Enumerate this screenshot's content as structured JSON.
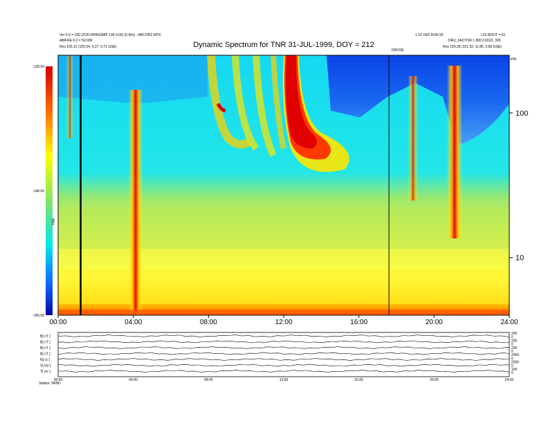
{
  "header": {
    "title": "Dynamic Spectrum for TNR 31-JUL-1999, DOY = 212",
    "left_line1": "Ver 5.0 = 100 (ZOO MPASSMP 100 0.00) (0.00v) - ARCOR2 EPIC",
    "left_line2": "AB/FRE 0.2 = 50.000",
    "left_line3": "Res     155.12 (155.54, 0.27, 0.71 GSE)",
    "right_line1": "1.10 VED DUR 00",
    "right_line2": "DRU_FACTOR 1 800 0.0013, 300",
    "right_line3": "Res     150.28 (151.32, 11.85, 0.80 GSE)",
    "right_top": "L33 ROOT = 61",
    "marker_label": "DRVOE"
  },
  "colorbar": {
    "ticks": [
      {
        "value": -125,
        "label": "-125.00"
      },
      {
        "value": -140,
        "label": "-140.00"
      },
      {
        "value": -155,
        "label": "-155.00"
      }
    ],
    "unit_label": "TNR"
  },
  "chart_data": {
    "type": "heatmap",
    "title": "Dynamic Spectrum for TNR 31-JUL-1999, DOY = 212",
    "xlabel": "",
    "ylabel": "",
    "x_range_hours": [
      0,
      24
    ],
    "x_ticks": [
      "00:00",
      "04:00",
      "08:00",
      "12:00",
      "16:00",
      "20:00",
      "24:00"
    ],
    "y_scale": "log",
    "y_ticks": [
      {
        "value": 10,
        "label": "10"
      },
      {
        "value": 100,
        "label": "100"
      }
    ],
    "y_unit": "kHz",
    "y_range_khz": [
      4,
      250
    ],
    "colorbar_range": [
      -155,
      -125
    ],
    "marker_lines_hours": [
      1.2,
      17.6
    ],
    "features": [
      {
        "name": "intense burst",
        "t_start": 11.9,
        "t_end": 14.3,
        "peak": -125
      },
      {
        "name": "vertical burst",
        "t_start": 3.9,
        "t_end": 4.3,
        "peak": -125
      },
      {
        "name": "vertical burst",
        "t_start": 20.9,
        "t_end": 21.3,
        "peak": -125
      },
      {
        "name": "quiet region",
        "t_start": 14.5,
        "t_end": 24.0,
        "level": -155
      }
    ],
    "grid": false
  },
  "lower_panel": {
    "row_labels": [
      "B[ nT ]",
      "B[ nT ]",
      "B[ nT ]",
      "B[ nT ]",
      "N[ cc ]",
      "V[ km ]",
      "T[ eV ]"
    ],
    "right_scale": [
      "200",
      "0",
      "200",
      "0",
      "200",
      "0",
      "2000",
      "0",
      "2000",
      "0",
      "100",
      "0"
    ],
    "x_ticks": [
      "00:00",
      "04:00",
      "08:00",
      "12:00",
      "16:00",
      "20:00",
      "24:00"
    ],
    "footer": "Station: WIND"
  }
}
